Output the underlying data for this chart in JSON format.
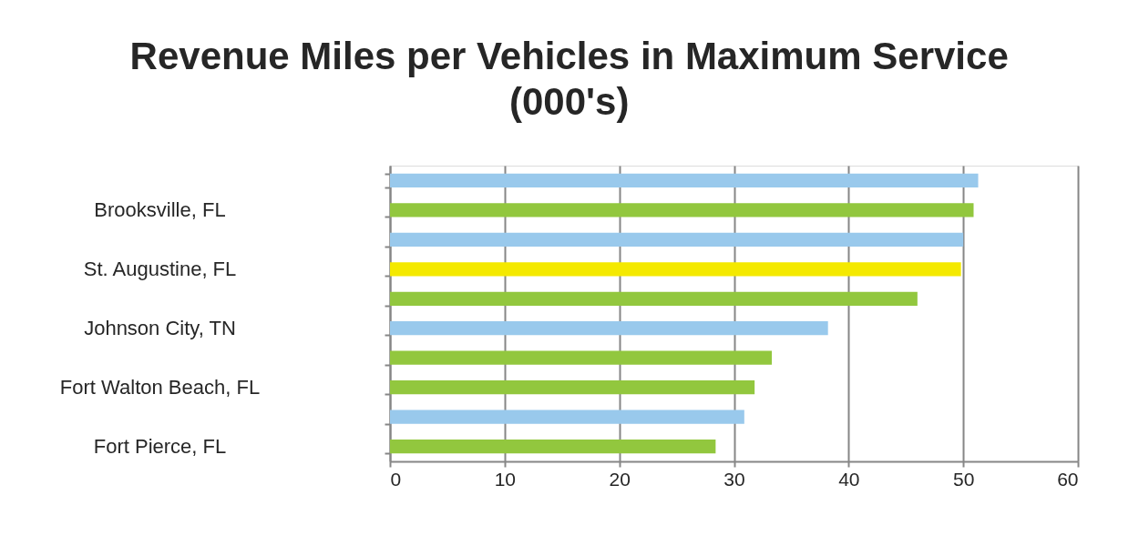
{
  "chart_data": {
    "type": "bar",
    "orientation": "horizontal",
    "title": "Revenue Miles per Vehicles in Maximum Service\n(000's)",
    "categories": [
      null,
      "Brooksville, FL",
      null,
      "St. Augustine, FL",
      null,
      "Johnson City, TN",
      null,
      "Fort Walton Beach, FL",
      null,
      "Fort Pierce, FL"
    ],
    "values": [
      51.3,
      50.9,
      50.0,
      49.8,
      46.0,
      38.2,
      33.3,
      31.8,
      30.9,
      28.4
    ],
    "colors": [
      "#99c9ec",
      "#92c73e",
      "#99c9ec",
      "#f4e900",
      "#92c73e",
      "#99c9ec",
      "#92c73e",
      "#92c73e",
      "#99c9ec",
      "#92c73e"
    ],
    "xlim": [
      0,
      60
    ],
    "xticks": [
      0,
      10,
      20,
      30,
      40,
      50,
      60
    ],
    "grid": "x"
  }
}
